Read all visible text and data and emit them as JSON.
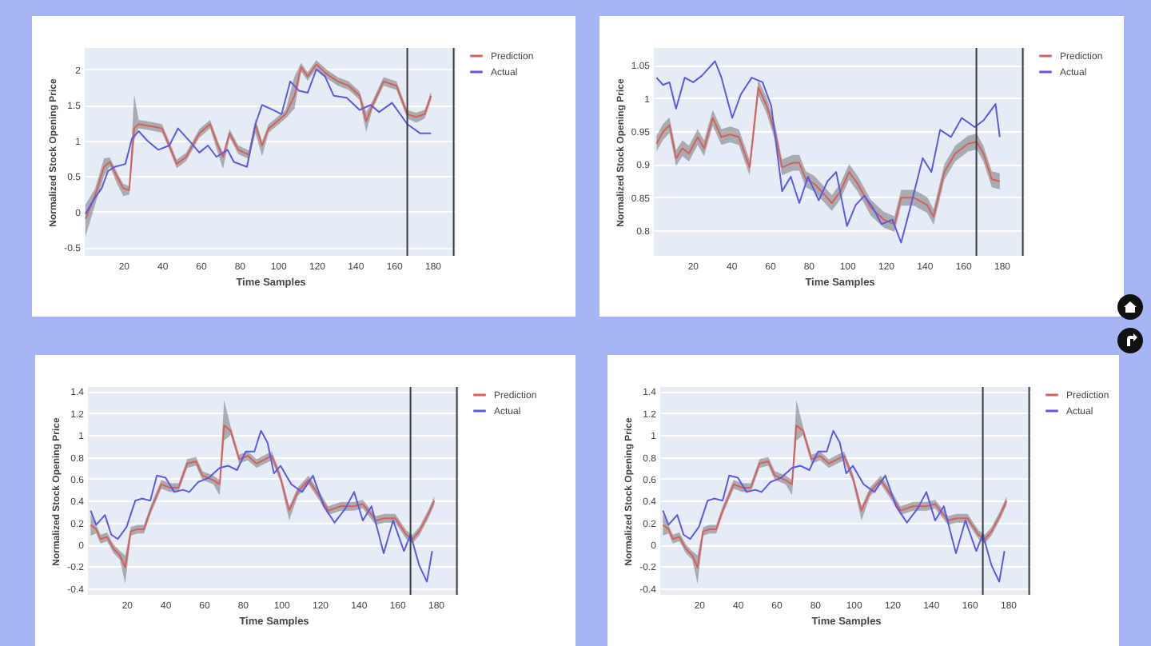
{
  "chart_data": [
    {
      "type": "line",
      "xlabel": "Time Samples",
      "ylabel": "Normalized Stock Opening Price",
      "xlim": [
        0,
        192
      ],
      "xticks": [
        20,
        40,
        60,
        80,
        100,
        120,
        140,
        160,
        180
      ],
      "ylim": [
        -0.62,
        2.3
      ],
      "yticks": [
        -0.5,
        0,
        0.5,
        1,
        1.5,
        2
      ],
      "grid": "y",
      "legend": "top right",
      "ref_lines": [
        {
          "axis": "x",
          "value": 167,
          "color": "#3a3a3a"
        },
        {
          "axis": "x",
          "value": 191,
          "color": "#3a3a3a"
        }
      ],
      "series": [
        {
          "name": "Prediction",
          "color": "#d9605a",
          "x": [
            0.4,
            5.4,
            10,
            13,
            16.6,
            20,
            23,
            25.6,
            27.9,
            34.6,
            40,
            43.8,
            47.6,
            52.5,
            59.3,
            64.9,
            69.4,
            71.6,
            75,
            79.5,
            85,
            88.4,
            91.8,
            95.2,
            99.7,
            104,
            108.6,
            112,
            115.4,
            119.9,
            125.5,
            131,
            136.7,
            142.3,
            145.7,
            149,
            154.7,
            161.4,
            167,
            171.5,
            176,
            179.3
          ],
          "values": [
            -0.1,
            0.23,
            0.63,
            0.7,
            0.5,
            0.33,
            0.3,
            1.17,
            1.23,
            1.2,
            1.17,
            0.93,
            0.67,
            0.77,
            1.1,
            1.23,
            0.9,
            0.77,
            1.1,
            0.87,
            0.8,
            1.23,
            0.93,
            1.17,
            1.27,
            1.37,
            1.63,
            2.03,
            1.9,
            2.07,
            1.93,
            1.83,
            1.77,
            1.63,
            1.27,
            1.5,
            1.83,
            1.77,
            1.37,
            1.33,
            1.37,
            1.63
          ],
          "lower": [
            -0.35,
            0.1,
            0.5,
            0.64,
            0.4,
            0.22,
            0.24,
            1.0,
            1.17,
            1.14,
            1.11,
            0.87,
            0.61,
            0.71,
            1.04,
            1.17,
            0.78,
            0.6,
            1.04,
            0.81,
            0.74,
            1.1,
            0.78,
            1.11,
            1.21,
            1.31,
            1.45,
            1.97,
            1.84,
            2.01,
            1.87,
            1.77,
            1.71,
            1.57,
            1.12,
            1.44,
            1.77,
            1.71,
            1.31,
            1.25,
            1.31,
            1.57
          ],
          "upper": [
            0.1,
            0.33,
            0.75,
            0.76,
            0.56,
            0.39,
            0.36,
            1.65,
            1.29,
            1.26,
            1.23,
            0.99,
            0.73,
            0.83,
            1.16,
            1.29,
            0.96,
            0.83,
            1.16,
            0.93,
            0.86,
            1.3,
            0.99,
            1.23,
            1.33,
            1.43,
            1.9,
            2.09,
            1.96,
            2.13,
            1.99,
            1.89,
            1.83,
            1.69,
            1.4,
            1.56,
            1.89,
            1.83,
            1.43,
            1.39,
            1.43,
            1.69
          ]
        },
        {
          "name": "Actual",
          "color": "#5a5ae6",
          "x": [
            0.4,
            5.4,
            8.8,
            12,
            15.5,
            21,
            24.5,
            28,
            32.3,
            38,
            43.8,
            48.3,
            55,
            59.3,
            63.8,
            68.2,
            73.9,
            77.2,
            84,
            88.4,
            91.8,
            97.4,
            101.9,
            106.4,
            110.9,
            115.4,
            119.9,
            124.4,
            128.9,
            135.6,
            142.3,
            148,
            152.4,
            159.1,
            167,
            173.7,
            179.3
          ],
          "values": [
            -0.03,
            0.2,
            0.33,
            0.57,
            0.63,
            0.67,
            1.03,
            1.13,
            1.0,
            0.87,
            0.93,
            1.17,
            0.97,
            0.83,
            0.93,
            0.77,
            0.87,
            0.7,
            0.63,
            1.23,
            1.5,
            1.43,
            1.37,
            1.83,
            1.7,
            1.67,
            2.0,
            1.9,
            1.63,
            1.6,
            1.43,
            1.5,
            1.4,
            1.53,
            1.23,
            1.1,
            1.1
          ]
        }
      ]
    },
    {
      "type": "line",
      "xlabel": "Time Samples",
      "ylabel": "Normalized Stock Opening Price",
      "xlim": [
        0,
        192
      ],
      "xticks": [
        20,
        40,
        60,
        80,
        100,
        120,
        140,
        160,
        180
      ],
      "ylim": [
        0.761,
        1.076
      ],
      "yticks": [
        0.8,
        0.85,
        0.9,
        0.95,
        1,
        1.05
      ],
      "grid": "y",
      "legend": "top right",
      "ref_lines": [
        {
          "axis": "x",
          "value": 167,
          "color": "#3a3a3a"
        },
        {
          "axis": "x",
          "value": 191,
          "color": "#3a3a3a"
        }
      ],
      "series": [
        {
          "name": "Prediction",
          "color": "#d9605a",
          "x": [
            1.4,
            4.8,
            8.1,
            11.5,
            14.8,
            18.2,
            22.7,
            26,
            30.5,
            35,
            39.5,
            44,
            49.6,
            54.1,
            58.5,
            63,
            66.4,
            71.9,
            75.3,
            78.7,
            83.2,
            88.8,
            92.2,
            96.6,
            101.1,
            105.6,
            112.3,
            119,
            124.6,
            128,
            134.7,
            141.5,
            144.8,
            150.4,
            156,
            162.7,
            167.2,
            170.6,
            175,
            179.1
          ],
          "values": [
            0.931,
            0.949,
            0.959,
            0.909,
            0.924,
            0.916,
            0.941,
            0.924,
            0.97,
            0.941,
            0.945,
            0.941,
            0.895,
            1.016,
            0.988,
            0.945,
            0.895,
            0.902,
            0.902,
            0.877,
            0.87,
            0.852,
            0.841,
            0.859,
            0.888,
            0.87,
            0.834,
            0.816,
            0.809,
            0.849,
            0.849,
            0.838,
            0.82,
            0.888,
            0.916,
            0.931,
            0.934,
            0.916,
            0.877,
            0.874
          ],
          "lower": [
            0.919,
            0.937,
            0.947,
            0.897,
            0.912,
            0.904,
            0.929,
            0.912,
            0.958,
            0.929,
            0.933,
            0.929,
            0.883,
            1.004,
            0.976,
            0.933,
            0.883,
            0.89,
            0.89,
            0.865,
            0.858,
            0.84,
            0.829,
            0.847,
            0.876,
            0.858,
            0.822,
            0.804,
            0.797,
            0.837,
            0.837,
            0.826,
            0.808,
            0.876,
            0.904,
            0.919,
            0.922,
            0.904,
            0.865,
            0.862
          ],
          "upper": [
            0.943,
            0.961,
            0.971,
            0.921,
            0.936,
            0.928,
            0.953,
            0.936,
            0.982,
            0.953,
            0.957,
            0.953,
            0.907,
            1.028,
            1.0,
            0.957,
            0.907,
            0.914,
            0.914,
            0.889,
            0.882,
            0.864,
            0.853,
            0.871,
            0.9,
            0.882,
            0.846,
            0.828,
            0.821,
            0.861,
            0.861,
            0.85,
            0.832,
            0.9,
            0.928,
            0.943,
            0.946,
            0.928,
            0.889,
            0.886
          ]
        },
        {
          "name": "Actual",
          "color": "#5a5ae6",
          "x": [
            1.4,
            4.8,
            8.1,
            11.5,
            16,
            20.4,
            24.9,
            31.7,
            35,
            40.6,
            45.1,
            50.7,
            56.3,
            60.8,
            66.4,
            70.9,
            75.3,
            79.8,
            85.4,
            89.9,
            94.4,
            100,
            104.5,
            109,
            113.4,
            117.9,
            123.5,
            128,
            132.5,
            139.2,
            143.7,
            148.2,
            153.8,
            159.4,
            166.1,
            170.6,
            176.9,
            179.1
          ],
          "values": [
            1.031,
            1.02,
            1.024,
            0.984,
            1.031,
            1.024,
            1.034,
            1.056,
            1.031,
            0.97,
            1.006,
            1.031,
            1.024,
            0.988,
            0.859,
            0.881,
            0.841,
            0.881,
            0.845,
            0.874,
            0.888,
            0.806,
            0.838,
            0.852,
            0.834,
            0.809,
            0.816,
            0.781,
            0.831,
            0.909,
            0.888,
            0.952,
            0.941,
            0.97,
            0.956,
            0.966,
            0.991,
            0.941
          ]
        }
      ]
    },
    {
      "type": "line",
      "xlabel": "Time Samples",
      "ylabel": "Normalized Stock Opening Price",
      "xlim": [
        0,
        192
      ],
      "xticks": [
        20,
        40,
        60,
        80,
        100,
        120,
        140,
        160,
        180
      ],
      "ylim": [
        -0.46,
        1.44
      ],
      "yticks": [
        -0.4,
        -0.2,
        0,
        0.2,
        0.4,
        0.6,
        0.8,
        1,
        1.2,
        1.4
      ],
      "grid": "y",
      "legend": "top right",
      "ref_lines": [
        {
          "axis": "x",
          "value": 167,
          "color": "#3a3a3a"
        },
        {
          "axis": "x",
          "value": 191,
          "color": "#3a3a3a"
        }
      ],
      "series": [
        {
          "name": "Prediction",
          "color": "#d9605a",
          "x": [
            1.4,
            4.3,
            6.5,
            9.9,
            13.3,
            16.6,
            19.3,
            22.2,
            25.6,
            29,
            32.3,
            38,
            42.4,
            46.9,
            51.4,
            55.9,
            59.3,
            64.9,
            68.2,
            70.5,
            73.9,
            78.3,
            82.8,
            87.3,
            91.8,
            95.2,
            99.7,
            104.2,
            108.6,
            114.2,
            119.9,
            124.4,
            131,
            137.8,
            142.3,
            149,
            153.5,
            159.1,
            164.8,
            168.1,
            171.5,
            176,
            179.3
          ],
          "values": [
            0.18,
            0.14,
            0.05,
            0.07,
            -0.04,
            -0.1,
            -0.21,
            0.12,
            0.14,
            0.14,
            0.31,
            0.55,
            0.52,
            0.52,
            0.74,
            0.76,
            0.63,
            0.59,
            0.55,
            1.09,
            1.04,
            0.78,
            0.81,
            0.74,
            0.78,
            0.81,
            0.61,
            0.31,
            0.48,
            0.59,
            0.44,
            0.31,
            0.35,
            0.35,
            0.37,
            0.22,
            0.24,
            0.24,
            0.09,
            0.05,
            0.12,
            0.27,
            0.4
          ],
          "lower": [
            0.08,
            0.1,
            0.01,
            0.03,
            -0.08,
            -0.14,
            -0.36,
            0.08,
            0.1,
            0.1,
            0.27,
            0.51,
            0.48,
            0.48,
            0.7,
            0.72,
            0.59,
            0.55,
            0.45,
            0.95,
            1.0,
            0.74,
            0.77,
            0.7,
            0.74,
            0.77,
            0.57,
            0.22,
            0.44,
            0.55,
            0.4,
            0.27,
            0.31,
            0.31,
            0.33,
            0.18,
            0.2,
            0.2,
            0.05,
            0.01,
            0.08,
            0.23,
            0.36
          ],
          "upper": [
            0.28,
            0.18,
            0.09,
            0.11,
            0.0,
            -0.06,
            -0.1,
            0.16,
            0.18,
            0.18,
            0.35,
            0.59,
            0.56,
            0.56,
            0.78,
            0.8,
            0.67,
            0.63,
            0.59,
            1.32,
            1.08,
            0.82,
            0.85,
            0.78,
            0.82,
            0.85,
            0.65,
            0.35,
            0.52,
            0.63,
            0.48,
            0.35,
            0.39,
            0.39,
            0.41,
            0.26,
            0.28,
            0.28,
            0.13,
            0.09,
            0.16,
            0.31,
            0.44
          ]
        },
        {
          "name": "Actual",
          "color": "#5a5ae6",
          "x": [
            1.4,
            4.3,
            8.8,
            12.1,
            15.5,
            20,
            24.5,
            27.9,
            32.3,
            35.7,
            40.2,
            44.7,
            49.2,
            52.5,
            57,
            62.6,
            68.2,
            72.7,
            77.2,
            81.7,
            86.2,
            89.6,
            93,
            96.3,
            99.7,
            105.3,
            110.9,
            116.5,
            122.1,
            127.7,
            133.3,
            137.8,
            142.3,
            146.8,
            153.1,
            158,
            163.6,
            167,
            171.5,
            175.5,
            178.2
          ],
          "values": [
            0.31,
            0.18,
            0.27,
            0.09,
            0.05,
            0.16,
            0.4,
            0.42,
            0.4,
            0.63,
            0.61,
            0.48,
            0.5,
            0.48,
            0.57,
            0.61,
            0.7,
            0.72,
            0.68,
            0.85,
            0.85,
            1.04,
            0.93,
            0.65,
            0.72,
            0.55,
            0.48,
            0.63,
            0.35,
            0.2,
            0.33,
            0.48,
            0.22,
            0.35,
            -0.08,
            0.22,
            -0.06,
            0.09,
            -0.19,
            -0.34,
            -0.06
          ]
        }
      ]
    },
    {
      "type": "line",
      "xlabel": "Time Samples",
      "ylabel": "Normalized Stock Opening Price",
      "xlim": [
        0,
        192
      ],
      "xticks": [
        20,
        40,
        60,
        80,
        100,
        120,
        140,
        160,
        180
      ],
      "ylim": [
        -0.46,
        1.44
      ],
      "yticks": [
        -0.4,
        -0.2,
        0,
        0.2,
        0.4,
        0.6,
        0.8,
        1,
        1.2,
        1.4
      ],
      "grid": "y",
      "legend": "top right",
      "ref_lines": [
        {
          "axis": "x",
          "value": 167,
          "color": "#3a3a3a"
        },
        {
          "axis": "x",
          "value": 191,
          "color": "#3a3a3a"
        }
      ],
      "series": [
        {
          "name": "Prediction",
          "color": "#d9605a",
          "x": [
            1.4,
            4.3,
            6.5,
            9.9,
            13.3,
            16.6,
            19.3,
            22.2,
            25.6,
            29,
            32.3,
            38,
            42.4,
            46.9,
            51.4,
            55.9,
            59.3,
            64.9,
            68.2,
            70.5,
            73.9,
            78.3,
            82.8,
            87.3,
            91.8,
            95.2,
            99.7,
            104.2,
            108.6,
            114.2,
            119.9,
            124.4,
            131,
            137.8,
            142.3,
            149,
            153.5,
            159.1,
            164.8,
            168.1,
            171.5,
            176,
            179.3
          ],
          "values": [
            0.18,
            0.14,
            0.05,
            0.07,
            -0.04,
            -0.1,
            -0.21,
            0.12,
            0.14,
            0.14,
            0.31,
            0.55,
            0.52,
            0.52,
            0.74,
            0.76,
            0.63,
            0.59,
            0.55,
            1.09,
            1.04,
            0.78,
            0.81,
            0.74,
            0.78,
            0.81,
            0.61,
            0.31,
            0.48,
            0.59,
            0.44,
            0.31,
            0.35,
            0.35,
            0.37,
            0.22,
            0.24,
            0.24,
            0.09,
            0.05,
            0.12,
            0.27,
            0.4
          ],
          "lower": [
            0.08,
            0.1,
            0.01,
            0.03,
            -0.08,
            -0.14,
            -0.36,
            0.08,
            0.1,
            0.1,
            0.27,
            0.51,
            0.48,
            0.48,
            0.7,
            0.72,
            0.59,
            0.55,
            0.45,
            0.95,
            1.0,
            0.74,
            0.77,
            0.7,
            0.74,
            0.77,
            0.57,
            0.22,
            0.44,
            0.55,
            0.4,
            0.27,
            0.31,
            0.31,
            0.33,
            0.18,
            0.2,
            0.2,
            0.05,
            0.01,
            0.08,
            0.23,
            0.36
          ],
          "upper": [
            0.28,
            0.18,
            0.09,
            0.11,
            0.0,
            -0.06,
            -0.1,
            0.16,
            0.18,
            0.18,
            0.35,
            0.59,
            0.56,
            0.56,
            0.78,
            0.8,
            0.67,
            0.63,
            0.59,
            1.32,
            1.08,
            0.82,
            0.85,
            0.78,
            0.82,
            0.85,
            0.65,
            0.35,
            0.52,
            0.63,
            0.48,
            0.35,
            0.39,
            0.39,
            0.41,
            0.26,
            0.28,
            0.28,
            0.13,
            0.09,
            0.16,
            0.31,
            0.44
          ]
        },
        {
          "name": "Actual",
          "color": "#5a5ae6",
          "x": [
            1.4,
            4.3,
            8.8,
            12.1,
            15.5,
            20,
            24.5,
            27.9,
            32.3,
            35.7,
            40.2,
            44.7,
            49.2,
            52.5,
            57,
            62.6,
            68.2,
            72.7,
            77.2,
            81.7,
            86.2,
            89.6,
            93,
            96.3,
            99.7,
            105.3,
            110.9,
            116.5,
            122.1,
            127.7,
            133.3,
            137.8,
            142.3,
            146.8,
            153.1,
            158,
            163.6,
            167,
            171.5,
            175.5,
            178.2
          ],
          "values": [
            0.31,
            0.18,
            0.27,
            0.09,
            0.05,
            0.16,
            0.4,
            0.42,
            0.4,
            0.63,
            0.61,
            0.48,
            0.5,
            0.48,
            0.57,
            0.61,
            0.7,
            0.72,
            0.68,
            0.85,
            0.85,
            1.04,
            0.93,
            0.65,
            0.72,
            0.55,
            0.48,
            0.63,
            0.35,
            0.2,
            0.33,
            0.48,
            0.22,
            0.35,
            -0.08,
            0.22,
            -0.06,
            0.09,
            -0.19,
            -0.34,
            -0.06
          ]
        }
      ]
    }
  ]
}
